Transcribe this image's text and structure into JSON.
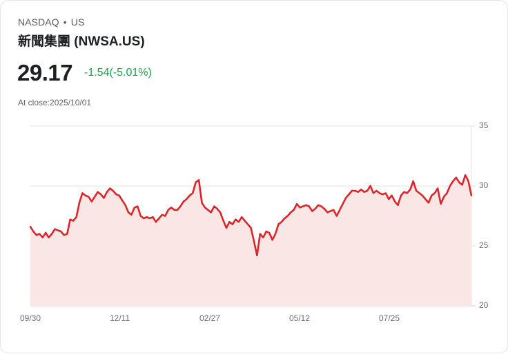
{
  "header": {
    "exchange": "NASDAQ",
    "separator": "•",
    "region": "US",
    "title": "新聞集團 (NWSA.US)",
    "price": "29.17",
    "change": "-1.54(-5.01%)",
    "close_label": "At close:2025/10/01"
  },
  "colors": {
    "line": "#d9262a",
    "fill": "#fbe6e6",
    "change_text": "#1aa34a",
    "grid": "#e3e3e3"
  },
  "chart_data": {
    "type": "area",
    "title": "新聞集團 (NWSA.US)",
    "xlabel": "",
    "ylabel": "",
    "ylim": [
      20,
      35
    ],
    "yticks": [
      "35",
      "30",
      "25",
      "20"
    ],
    "xticks": [
      "09/30",
      "12/11",
      "02/27",
      "05/12",
      "07/25"
    ],
    "grid": true,
    "legend": "none",
    "series": [
      {
        "name": "NWSA.US",
        "x_range": [
          "2024/09/30",
          "2025/10/01"
        ],
        "values": [
          26.6,
          26.2,
          25.9,
          26.0,
          25.7,
          26.1,
          25.7,
          26.0,
          26.4,
          26.3,
          26.2,
          25.9,
          26.0,
          27.2,
          27.1,
          27.4,
          28.6,
          29.4,
          29.2,
          29.1,
          28.7,
          29.1,
          29.5,
          29.3,
          29.0,
          29.5,
          29.8,
          29.6,
          29.3,
          29.2,
          28.8,
          28.4,
          27.8,
          27.6,
          28.2,
          28.3,
          27.5,
          27.3,
          27.4,
          27.3,
          27.4,
          27.0,
          27.3,
          27.6,
          27.5,
          28.0,
          28.2,
          28.0,
          28.0,
          28.3,
          28.7,
          28.9,
          29.2,
          29.4,
          30.3,
          30.5,
          28.6,
          28.2,
          28.0,
          27.8,
          28.3,
          28.1,
          27.8,
          27.1,
          26.5,
          27.0,
          26.8,
          27.2,
          27.0,
          27.4,
          27.1,
          26.8,
          26.5,
          25.4,
          24.2,
          26.0,
          25.7,
          26.2,
          26.1,
          25.5,
          26.0,
          26.8,
          27.0,
          27.3,
          27.5,
          27.8,
          28.0,
          28.5,
          28.2,
          28.3,
          28.4,
          28.3,
          27.9,
          28.1,
          28.4,
          28.3,
          28.1,
          27.8,
          27.9,
          28.0,
          27.5,
          28.0,
          28.5,
          29.0,
          29.3,
          29.6,
          29.6,
          29.5,
          29.7,
          29.5,
          29.6,
          30.0,
          29.4,
          29.6,
          29.4,
          29.3,
          29.4,
          28.9,
          29.2,
          28.7,
          28.4,
          29.2,
          29.5,
          29.4,
          29.7,
          30.4,
          29.6,
          29.4,
          29.2,
          28.9,
          28.6,
          29.2,
          29.4,
          29.8,
          28.5,
          29.1,
          29.4,
          30.0,
          30.4,
          30.7,
          30.3,
          30.1,
          30.9,
          30.4,
          29.2
        ]
      }
    ]
  }
}
